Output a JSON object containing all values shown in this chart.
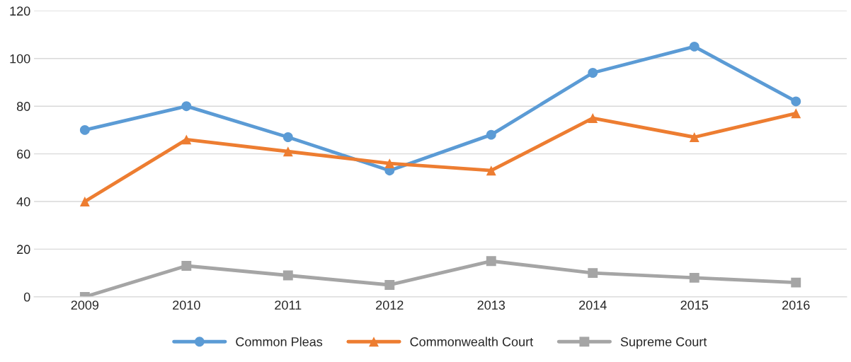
{
  "chart_data": {
    "type": "line",
    "categories": [
      "2009",
      "2010",
      "2011",
      "2012",
      "2013",
      "2014",
      "2015",
      "2016"
    ],
    "series": [
      {
        "name": "Common Pleas",
        "color": "#5b9bd5",
        "marker": "circle",
        "values": [
          70,
          80,
          67,
          53,
          68,
          94,
          105,
          82
        ]
      },
      {
        "name": "Commonwealth Court",
        "color": "#ed7d31",
        "marker": "triangle",
        "values": [
          40,
          66,
          61,
          56,
          53,
          75,
          67,
          77
        ]
      },
      {
        "name": "Supreme Court",
        "color": "#a5a5a5",
        "marker": "square",
        "values": [
          0,
          13,
          9,
          5,
          15,
          10,
          8,
          6
        ]
      }
    ],
    "ylim": [
      0,
      120
    ],
    "yticks": [
      0,
      20,
      40,
      60,
      80,
      100,
      120
    ],
    "grid": "y",
    "legend": "bottom",
    "line_style": "solid"
  }
}
